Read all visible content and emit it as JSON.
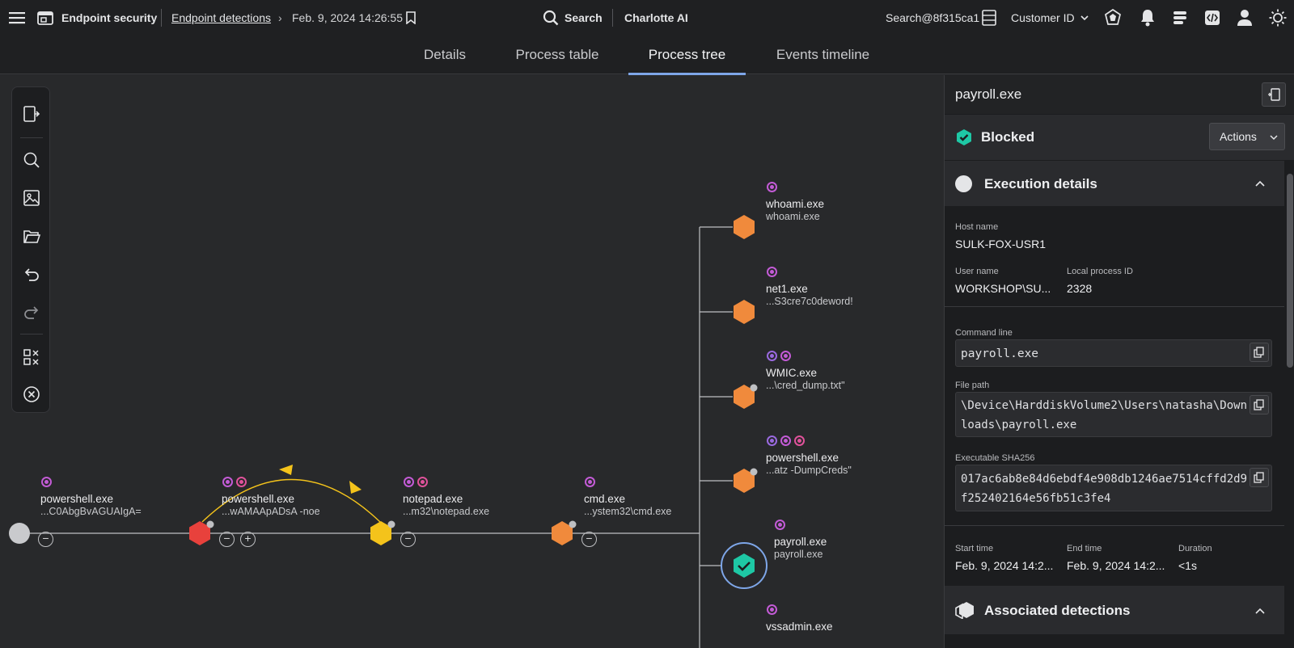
{
  "topbar": {
    "app_title": "Endpoint security",
    "breadcrumb_link": "Endpoint detections",
    "breadcrumb_current": "Feb. 9, 2024 14:26:55",
    "search_label": "Search",
    "ai_label": "Charlotte AI",
    "user_search": "Search@8f315ca1",
    "customer_label": "Customer ID"
  },
  "tabs": [
    "Details",
    "Process table",
    "Process tree",
    "Events timeline"
  ],
  "active_tab": "Process tree",
  "tree": {
    "chain": [
      {
        "name": "powershell.exe",
        "sub": "...C0AbgBvAGUAIgA="
      },
      {
        "name": "powershell.exe",
        "sub": "...wAMAApADsA -noe"
      },
      {
        "name": "notepad.exe",
        "sub": "...m32\\notepad.exe"
      },
      {
        "name": "cmd.exe",
        "sub": "...ystem32\\cmd.exe"
      }
    ],
    "children": [
      {
        "name": "whoami.exe",
        "sub": "whoami.exe"
      },
      {
        "name": "net1.exe",
        "sub": "...S3cre7c0deword!"
      },
      {
        "name": "WMIC.exe",
        "sub": "...\\cred_dump.txt\""
      },
      {
        "name": "powershell.exe",
        "sub": "...atz -DumpCreds\""
      },
      {
        "name": "payroll.exe",
        "sub": "payroll.exe"
      },
      {
        "name": "vssadmin.exe",
        "sub": ""
      }
    ],
    "colors": {
      "orange": "#f08a3c",
      "red": "#e8413c",
      "yellow": "#f4c31b",
      "teal": "#1ec8a5",
      "badge_purple": "#c35bd6",
      "badge_pink": "#e0529b",
      "badge_violet": "#9a6ae0"
    }
  },
  "panel": {
    "title": "payroll.exe",
    "status": "Blocked",
    "actions_label": "Actions",
    "exec_title": "Execution details",
    "host_label": "Host name",
    "host_value": "SULK-FOX-USR1",
    "user_label": "User name",
    "user_value": "WORKSHOP\\SU...",
    "pid_label": "Local process ID",
    "pid_value": "2328",
    "cmd_label": "Command line",
    "cmd_value": "payroll.exe",
    "path_label": "File path",
    "path_line1": "\\Device\\HarddiskVolume2\\Users\\natasha\\Down",
    "path_line2": "loads\\payroll.exe",
    "sha_label": "Executable SHA256",
    "sha_line1": "017ac6ab8e84d6ebdf4e908db1246ae7514cffd2d9",
    "sha_line2": "f252402164e56fb51c3fe4",
    "start_label": "Start time",
    "start_value": "Feb. 9, 2024 14:2...",
    "end_label": "End time",
    "end_value": "Feb. 9, 2024 14:2...",
    "dur_label": "Duration",
    "dur_value": "<1s",
    "assoc_title": "Associated detections"
  }
}
